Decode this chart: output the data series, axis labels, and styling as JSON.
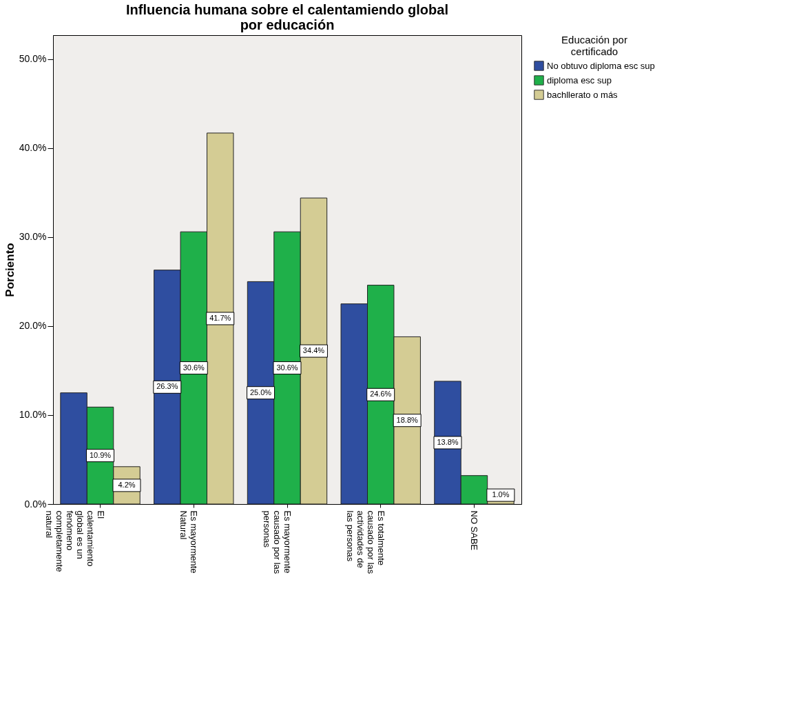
{
  "chart_data": {
    "type": "bar",
    "title": [
      "Influencia humana sobre el calentamiendo global",
      "por educación"
    ],
    "ylabel": "Porciento",
    "legend_title": [
      "Educación por",
      "certificado"
    ],
    "categories": [
      "El calentamiento global es un fenómeno completamente natural",
      "Es mayormente Natural",
      "Es mayormente causado por las personas",
      "Es totalmente causado por las actividades de las personas",
      "NO SABE"
    ],
    "series": [
      {
        "name": "No obtuvo diploma esc sup",
        "color": "#2f4ea0",
        "values": [
          12.5,
          26.3,
          25.0,
          22.5,
          13.8
        ],
        "value_labels": [
          null,
          "26.3%",
          "25.0%",
          null,
          "13.8%"
        ]
      },
      {
        "name": "diploma esc sup",
        "color": "#1fb04a",
        "values": [
          10.9,
          30.6,
          30.6,
          24.6,
          3.2
        ],
        "value_labels": [
          "10.9%",
          "30.6%",
          "30.6%",
          "24.6%",
          null
        ]
      },
      {
        "name": "bachllerato o más",
        "color": "#d4cc94",
        "values": [
          4.2,
          41.7,
          34.4,
          18.8,
          1.0
        ],
        "value_labels": [
          "4.2%",
          "41.7%",
          "34.4%",
          "18.8%",
          "1.0%"
        ]
      }
    ],
    "ylim": [
      0,
      52.7
    ],
    "yticks": [
      {
        "value": 0,
        "label": "0.0%"
      },
      {
        "value": 10,
        "label": "10.0%"
      },
      {
        "value": 20,
        "label": "20.0%"
      },
      {
        "value": 30,
        "label": "30.0%"
      },
      {
        "value": 40,
        "label": "40.0%"
      },
      {
        "value": 50,
        "label": "50.0%"
      }
    ],
    "grid": false,
    "legend": "top right"
  }
}
